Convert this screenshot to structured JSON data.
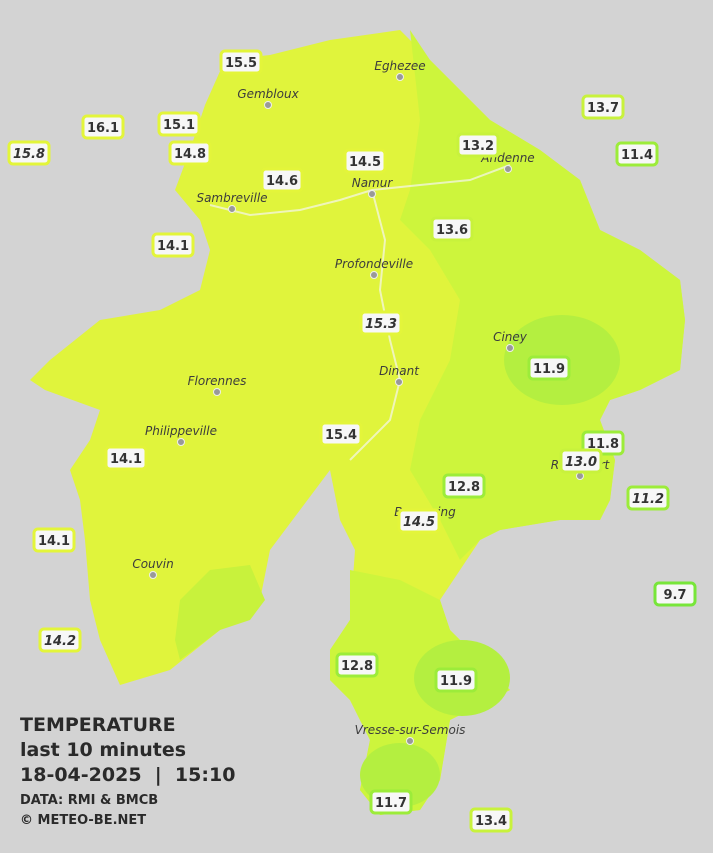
{
  "header": {
    "title": "TEMPERATURE",
    "subtitle": "last 10 minutes",
    "datetime": "18-04-2025  |  15:10",
    "source": "DATA: RMI & BMCB",
    "copyright": "© METEO-BE.NET"
  },
  "cities": [
    "Eghezee",
    "Gembloux",
    "Andenne",
    "Namur",
    "Sambreville",
    "Profondeville",
    "Ciney",
    "Dinant",
    "Florennes",
    "Philippeville",
    "Rochefort",
    "Beauraing",
    "Couvin",
    "Vresse-sur-Semois"
  ],
  "stations": [
    "15.5",
    "16.1",
    "15.1",
    "15.8",
    "14.8",
    "14.5",
    "14.6",
    "13.2",
    "13.7",
    "11.4",
    "13.6",
    "14.1",
    "15.3",
    "11.9",
    "14.1",
    "15.4",
    "11.8",
    "13.0",
    "12.8",
    "11.2",
    "14.5",
    "14.1",
    "9.7",
    "14.2",
    "12.8",
    "11.9",
    "11.7",
    "13.4"
  ]
}
